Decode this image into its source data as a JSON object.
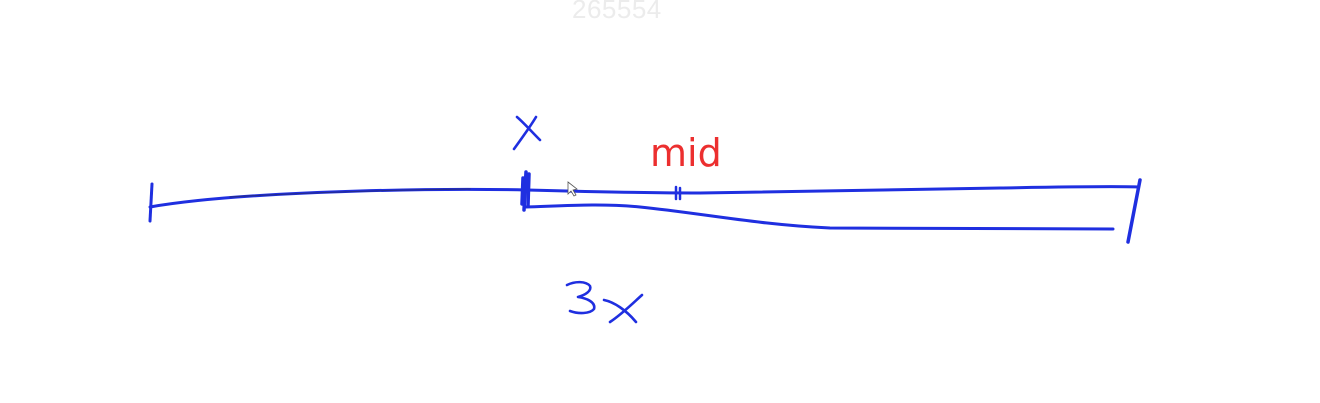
{
  "watermark": "265554",
  "labels": {
    "mid": "mid",
    "x_mark": "x",
    "three_x": "3x"
  },
  "colors": {
    "ink_blue": "#1f2fe0",
    "ink_dark": "#20204a",
    "label_red": "#ec2f2f",
    "watermark_gray": "#ececec"
  }
}
